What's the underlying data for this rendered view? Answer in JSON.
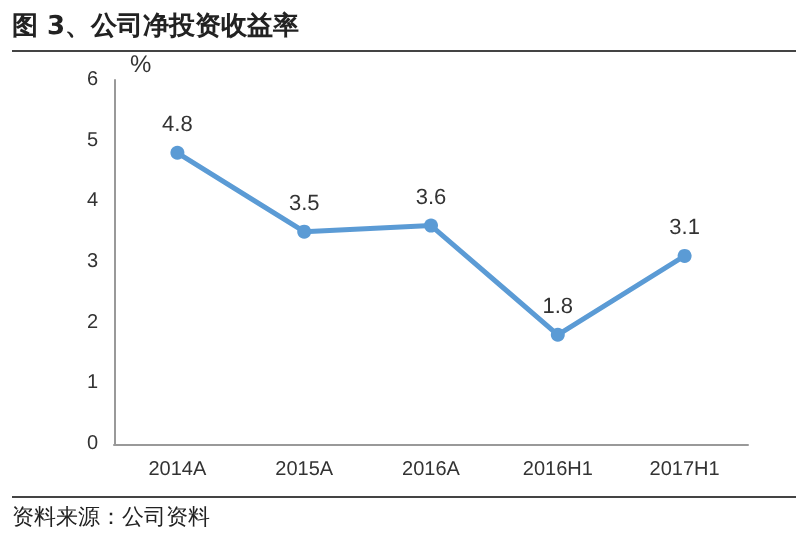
{
  "chart_data": {
    "type": "line",
    "title": "图 3、公司净投资收益率",
    "ylabel": "%",
    "annotations": [
      "资料来源：公司资料"
    ],
    "categories": [
      "2014A",
      "2015A",
      "2016A",
      "2016H1",
      "2017H1"
    ],
    "series": [
      {
        "color": "#5b9bd5",
        "values": [
          4.8,
          3.5,
          3.6,
          1.8,
          3.1
        ]
      }
    ],
    "ylim": [
      0,
      6
    ],
    "yticks": [
      0,
      1,
      2,
      3,
      4,
      5,
      6
    ],
    "data_labels": true,
    "marker": "circle",
    "grid": false
  }
}
